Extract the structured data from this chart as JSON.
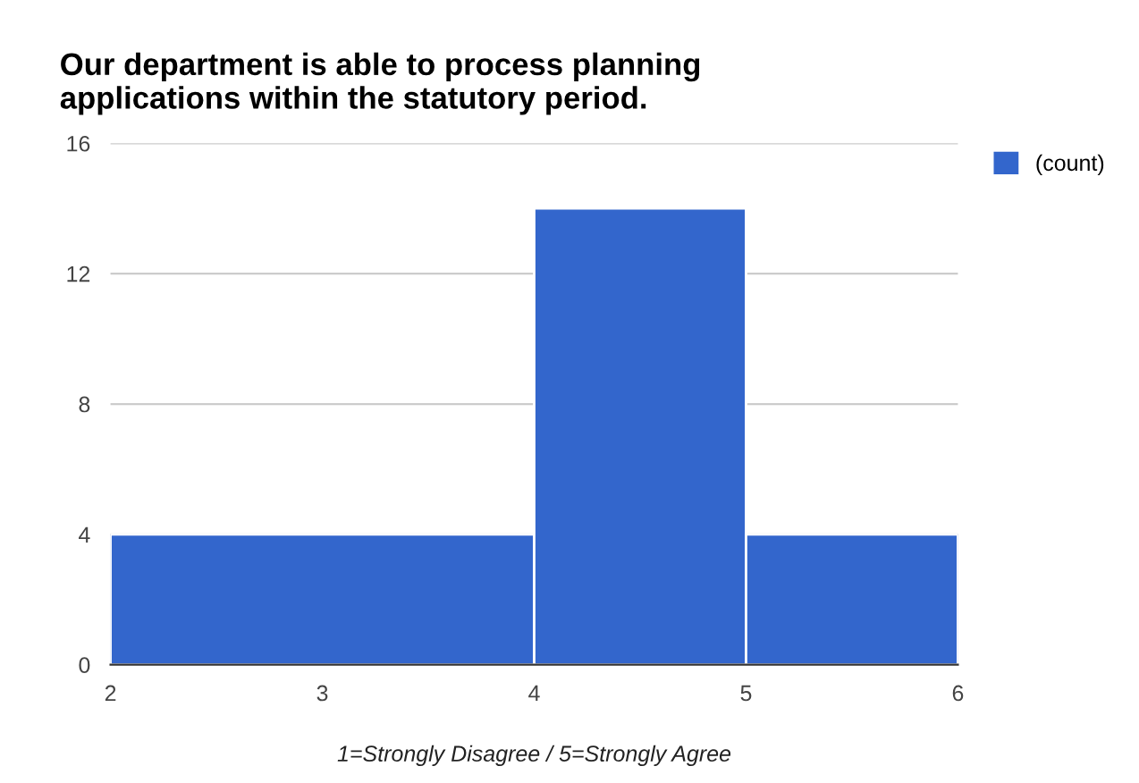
{
  "chart_data": {
    "type": "histogram",
    "title": "Our department is able to process planning\napplications within the statutory period.",
    "xlabel": "1=Strongly Disagree / 5=Strongly Agree",
    "bins": [
      2,
      4,
      5,
      6
    ],
    "series": [
      {
        "name": "(count)",
        "color": "#3366cc",
        "values": [
          4,
          14,
          4
        ]
      }
    ],
    "xlim": [
      2,
      6
    ],
    "xticks": [
      2,
      3,
      4,
      5,
      6
    ],
    "ylim": [
      0,
      16
    ],
    "yticks": [
      0,
      4,
      8,
      12,
      16
    ],
    "grid": "y",
    "legend": "top right"
  }
}
